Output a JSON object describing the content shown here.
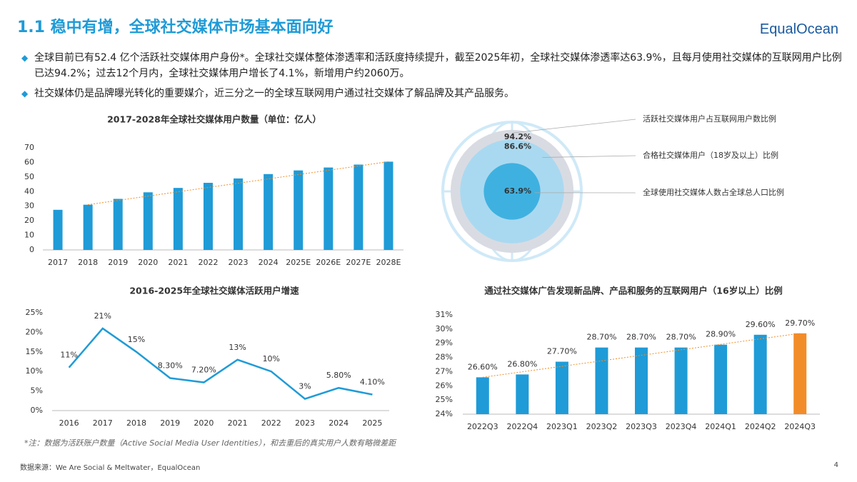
{
  "header": {
    "title": "1.1 稳中有增，全球社交媒体市场基本面向好",
    "logo": "EqualOcean"
  },
  "bullets": [
    "全球目前已有52.4 亿个活跃社交媒体用户身份*。全球社交媒体整体渗透率和活跃度持续提升，截至2025年初，全球社交媒体渗透率达63.9%，且每月使用社交媒体的互联网用户比例已达94.2%；过去12个月内，全球社交媒体用户增长了4.1%，新增用户约2060万。",
    "社交媒体仍是品牌曝光转化的重要媒介，近三分之一的全球互联网用户通过社交媒体了解品牌及其产品服务。"
  ],
  "chart_data": [
    {
      "type": "bar",
      "title": "2017-2028年全球社交媒体用户数量（单位：亿人）",
      "categories": [
        "2017",
        "2018",
        "2019",
        "2020",
        "2021",
        "2022",
        "2023",
        "2024",
        "2025E",
        "2026E",
        "2027E",
        "2028E"
      ],
      "values": [
        27.5,
        31,
        35,
        39.5,
        42.5,
        46,
        49,
        52,
        54.5,
        56.5,
        58.5,
        60.5
      ],
      "color": "#1f9bd7",
      "trendline": true,
      "ylim": [
        0,
        70
      ],
      "yticks": [
        0,
        10,
        20,
        30,
        40,
        50,
        60,
        70
      ]
    },
    {
      "type": "circles",
      "categories": [
        "活跃社交媒体用户占互联网用户数比例",
        "合格社交媒体用户（18岁及以上）比例",
        "全球使用社交媒体人数占全球总人口比例"
      ],
      "values": [
        94.2,
        86.6,
        63.9
      ],
      "value_labels": [
        "94.2%",
        "86.6%",
        "63.9%"
      ],
      "colors": [
        "#d9dbe3",
        "#a9d9f0",
        "#3fb1e0"
      ]
    },
    {
      "type": "line",
      "title": "2016-2025年全球社交媒体活跃用户增速",
      "categories": [
        "2016",
        "2017",
        "2018",
        "2019",
        "2020",
        "2021",
        "2022",
        "2023",
        "2024",
        "2025"
      ],
      "values": [
        11,
        21,
        15,
        8.3,
        7.2,
        13,
        10,
        3,
        5.8,
        4.1
      ],
      "value_labels": [
        "11%",
        "21%",
        "15%",
        "8.30%",
        "7.20%",
        "13%",
        "10%",
        "3%",
        "5.80%",
        "4.10%"
      ],
      "color": "#1f9bd7",
      "ylim": [
        0,
        25
      ],
      "yticks": [
        {
          "value": 0,
          "label": "0%"
        },
        {
          "value": 5,
          "label": "5%"
        },
        {
          "value": 10,
          "label": "10%"
        },
        {
          "value": 15,
          "label": "15%"
        },
        {
          "value": 20,
          "label": "20%"
        },
        {
          "value": 25,
          "label": "25%"
        }
      ]
    },
    {
      "type": "bar",
      "title": "通过社交媒体广告发现新品牌、产品和服务的互联网用户（16岁以上）比例",
      "categories": [
        "2022Q3",
        "2022Q4",
        "2023Q1",
        "2023Q2",
        "2023Q3",
        "2023Q4",
        "2024Q1",
        "2024Q2",
        "2024Q3"
      ],
      "values": [
        26.6,
        26.8,
        27.7,
        28.7,
        28.7,
        28.7,
        28.9,
        29.6,
        29.7
      ],
      "value_labels": [
        "26.60%",
        "26.80%",
        "27.70%",
        "28.70%",
        "28.70%",
        "28.70%",
        "28.90%",
        "29.60%",
        "29.70%"
      ],
      "colors": [
        "#1f9bd7",
        "#1f9bd7",
        "#1f9bd7",
        "#1f9bd7",
        "#1f9bd7",
        "#1f9bd7",
        "#1f9bd7",
        "#1f9bd7",
        "#f28c28"
      ],
      "trendline": true,
      "ylim": [
        24,
        31
      ],
      "yticks": [
        {
          "value": 24,
          "label": "24%"
        },
        {
          "value": 25,
          "label": "25%"
        },
        {
          "value": 26,
          "label": "26%"
        },
        {
          "value": 27,
          "label": "27%"
        },
        {
          "value": 28,
          "label": "28%"
        },
        {
          "value": 29,
          "label": "29%"
        },
        {
          "value": 30,
          "label": "30%"
        },
        {
          "value": 31,
          "label": "31%"
        }
      ]
    }
  ],
  "footer": {
    "note": "*注：数据为活跃账户数量（Active Social Media User Identities），和去重后的真实用户人数有略微差距",
    "source": "数据来源：We Are Social & Meltwater，EqualOcean",
    "page": "4"
  }
}
